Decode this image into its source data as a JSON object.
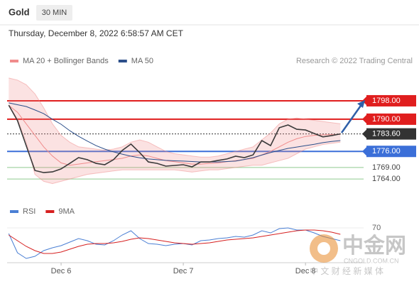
{
  "header": {
    "symbol": "Gold",
    "interval": "30 MIN",
    "timestamp": "Thursday, December 8, 2022 6:58:57 AM CET"
  },
  "watermark": {
    "brand": "中金网",
    "site": "CNGOLD.COM.CN",
    "tagline": "中 文 财 经 新 媒 体"
  },
  "chart_data": [
    {
      "type": "line",
      "credit": "Research © 2022 Trading Central",
      "ylim": [
        1755.4,
        1809.4
      ],
      "color": "#3a3a3a",
      "values": [
        1796.1,
        1789.4,
        1778.5,
        1767.7,
        1766.8,
        1767.1,
        1768.4,
        1770.8,
        1773.3,
        1772.4,
        1770.8,
        1770.2,
        1772.4,
        1776.4,
        1779.2,
        1775.5,
        1771.4,
        1770.8,
        1769.6,
        1769.9,
        1770.2,
        1769.3,
        1771.4,
        1771.4,
        1772.1,
        1772.7,
        1773.9,
        1773.3,
        1774.5,
        1780.7,
        1778.5,
        1786.3,
        1787.5,
        1785.6,
        1785.3,
        1783.8,
        1782.3,
        1782.9,
        1783.6
      ],
      "series": [
        {
          "name": "MA 20 + Bollinger Bands",
          "color": "#f08c8c",
          "values": [
            1796,
            1793,
            1788,
            1783,
            1778,
            1774,
            1771,
            1770,
            1770.5,
            1771,
            1771.5,
            1772,
            1772.5,
            1773,
            1774,
            1774.5,
            1774,
            1773,
            1772,
            1771.5,
            1771,
            1770.5,
            1770.5,
            1770.8,
            1771,
            1771.5,
            1772,
            1772.5,
            1773,
            1774.5,
            1776,
            1778,
            1780,
            1781.5,
            1782.5,
            1783,
            1783.2,
            1783.3,
            1783.4
          ],
          "upper": [
            1807.9,
            1807,
            1805,
            1801,
            1795,
            1788,
            1783,
            1780,
            1778,
            1777.5,
            1777,
            1776.5,
            1777,
            1778,
            1780,
            1781,
            1780,
            1778,
            1776,
            1775,
            1774.5,
            1774,
            1773.5,
            1773.5,
            1774,
            1775,
            1776,
            1777,
            1778,
            1781,
            1784,
            1788,
            1790,
            1790.5,
            1790,
            1789.5,
            1789,
            1788.5,
            1788
          ],
          "lower": [
            1796,
            1790,
            1780,
            1766,
            1763,
            1762,
            1763,
            1764,
            1765,
            1766,
            1766.5,
            1767,
            1767.5,
            1768,
            1768,
            1768,
            1768,
            1768,
            1768,
            1768,
            1767.5,
            1767,
            1767.5,
            1768,
            1768,
            1768.5,
            1769,
            1769.5,
            1770,
            1770,
            1771,
            1772,
            1773,
            1775,
            1777,
            1778,
            1779,
            1779.5,
            1780
          ]
        },
        {
          "name": "MA 50",
          "color": "#2c4f8a",
          "values": [
            1797.1,
            1796.3,
            1795.5,
            1794,
            1792.4,
            1790,
            1787.8,
            1785,
            1782.6,
            1780.5,
            1778.5,
            1777,
            1775.8,
            1774.8,
            1773.9,
            1773.2,
            1772.7,
            1772.4,
            1772.1,
            1771.9,
            1771.8,
            1771.6,
            1771.4,
            1771.4,
            1771.4,
            1771.6,
            1771.8,
            1772.5,
            1773.3,
            1774.4,
            1775.5,
            1776.4,
            1777.3,
            1777.9,
            1778.5,
            1779.1,
            1779.8,
            1780.3,
            1780.7
          ]
        }
      ],
      "levels": [
        {
          "value": 1798,
          "label": "1798.00",
          "color": "#e01e1e",
          "boxed": true,
          "dashed": false
        },
        {
          "value": 1790,
          "label": "1790.00",
          "color": "#e01e1e",
          "boxed": true,
          "dashed": false
        },
        {
          "value": 1783.6,
          "label": "1783.60",
          "color": "#333333",
          "boxed": true,
          "dashed": true
        },
        {
          "value": 1776,
          "label": "1776.00",
          "color": "#3b6fd8",
          "boxed": true,
          "dashed": false
        },
        {
          "value": 1769,
          "label": "1769.00",
          "color": "#8fc98f",
          "boxed": false,
          "dashed": false
        },
        {
          "value": 1764,
          "label": "1764.00",
          "color": "#8fc98f",
          "boxed": false,
          "dashed": false
        }
      ]
    },
    {
      "type": "line",
      "ylim": [
        21,
        81
      ],
      "yticks": [
        70
      ],
      "categories": [
        null,
        null,
        null,
        null,
        null,
        null,
        "Dec 6",
        null,
        null,
        null,
        null,
        null,
        null,
        null,
        null,
        null,
        null,
        null,
        null,
        null,
        "Dec 7",
        null,
        null,
        null,
        null,
        null,
        null,
        null,
        null,
        null,
        null,
        null,
        null,
        null,
        "Dec 8",
        null,
        null,
        null,
        null
      ],
      "series": [
        {
          "name": "RSI",
          "color": "#4a7fd4",
          "values": [
            62,
            35,
            27,
            30,
            38,
            42,
            45,
            50,
            55,
            52,
            47,
            46,
            52,
            60,
            66,
            55,
            48,
            47,
            45,
            47,
            48,
            46,
            52,
            53,
            55,
            56,
            58,
            57,
            60,
            66,
            63,
            69,
            70,
            67,
            67,
            63,
            58,
            55,
            52
          ]
        },
        {
          "name": "9MA",
          "color": "#d62020",
          "values": [
            60,
            52,
            44,
            38,
            34,
            34,
            36,
            40,
            44,
            47,
            48,
            48,
            49,
            51,
            54,
            56,
            55,
            53,
            51,
            49,
            48,
            47,
            48,
            49,
            51,
            53,
            54,
            55,
            56,
            58,
            60,
            62,
            64,
            66,
            67,
            67,
            66,
            64,
            61
          ]
        }
      ]
    }
  ]
}
